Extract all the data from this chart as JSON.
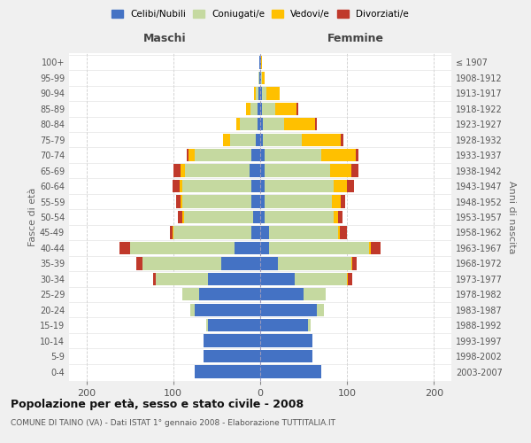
{
  "age_groups": [
    "0-4",
    "5-9",
    "10-14",
    "15-19",
    "20-24",
    "25-29",
    "30-34",
    "35-39",
    "40-44",
    "45-49",
    "50-54",
    "55-59",
    "60-64",
    "65-69",
    "70-74",
    "75-79",
    "80-84",
    "85-89",
    "90-94",
    "95-99",
    "100+"
  ],
  "birth_years": [
    "2003-2007",
    "1998-2002",
    "1993-1997",
    "1988-1992",
    "1983-1987",
    "1978-1982",
    "1973-1977",
    "1968-1972",
    "1963-1967",
    "1958-1962",
    "1953-1957",
    "1948-1952",
    "1943-1947",
    "1938-1942",
    "1933-1937",
    "1928-1932",
    "1923-1927",
    "1918-1922",
    "1913-1917",
    "1908-1912",
    "≤ 1907"
  ],
  "maschi": {
    "celibi": [
      75,
      65,
      65,
      60,
      75,
      70,
      60,
      45,
      30,
      10,
      8,
      10,
      10,
      12,
      10,
      5,
      3,
      3,
      2,
      1,
      1
    ],
    "coniugati": [
      0,
      0,
      0,
      2,
      5,
      20,
      60,
      90,
      120,
      90,
      80,
      80,
      80,
      75,
      65,
      30,
      20,
      8,
      3,
      1,
      0
    ],
    "vedovi": [
      0,
      0,
      0,
      0,
      0,
      0,
      0,
      0,
      0,
      1,
      2,
      2,
      3,
      5,
      8,
      8,
      5,
      5,
      2,
      0,
      0
    ],
    "divorziati": [
      0,
      0,
      0,
      0,
      0,
      0,
      3,
      8,
      12,
      3,
      5,
      5,
      8,
      8,
      2,
      0,
      0,
      0,
      0,
      0,
      0
    ]
  },
  "femmine": {
    "nubili": [
      70,
      60,
      60,
      55,
      65,
      50,
      40,
      20,
      10,
      10,
      5,
      5,
      5,
      5,
      5,
      3,
      3,
      2,
      2,
      1,
      1
    ],
    "coniugate": [
      0,
      0,
      0,
      3,
      8,
      25,
      60,
      85,
      115,
      80,
      80,
      78,
      80,
      75,
      65,
      45,
      25,
      15,
      5,
      1,
      0
    ],
    "vedove": [
      0,
      0,
      0,
      0,
      0,
      0,
      1,
      1,
      2,
      2,
      5,
      10,
      15,
      25,
      40,
      45,
      35,
      25,
      15,
      3,
      1
    ],
    "divorziate": [
      0,
      0,
      0,
      0,
      0,
      0,
      5,
      5,
      12,
      8,
      5,
      5,
      8,
      8,
      3,
      3,
      2,
      2,
      0,
      0,
      0
    ]
  },
  "colors": {
    "celibi_nubili": "#4472c4",
    "coniugati_e": "#c5d9a0",
    "vedovi_e": "#ffc000",
    "divorziati_e": "#c0392b"
  },
  "xlim": [
    -220,
    220
  ],
  "xticks": [
    -200,
    -100,
    0,
    100,
    200
  ],
  "xticklabels": [
    "200",
    "100",
    "0",
    "100",
    "200"
  ],
  "title": "Popolazione per età, sesso e stato civile - 2008",
  "subtitle": "COMUNE DI TAINO (VA) - Dati ISTAT 1° gennaio 2008 - Elaborazione TUTTITALIA.IT",
  "ylabel_left": "Fasce di età",
  "ylabel_right": "Anni di nascita",
  "legend_labels": [
    "Celibi/Nubili",
    "Coniugati/e",
    "Vedovi/e",
    "Divorziati/e"
  ],
  "maschi_label": "Maschi",
  "femmine_label": "Femmine",
  "bg_color": "#f0f0f0",
  "plot_bg_color": "#ffffff"
}
